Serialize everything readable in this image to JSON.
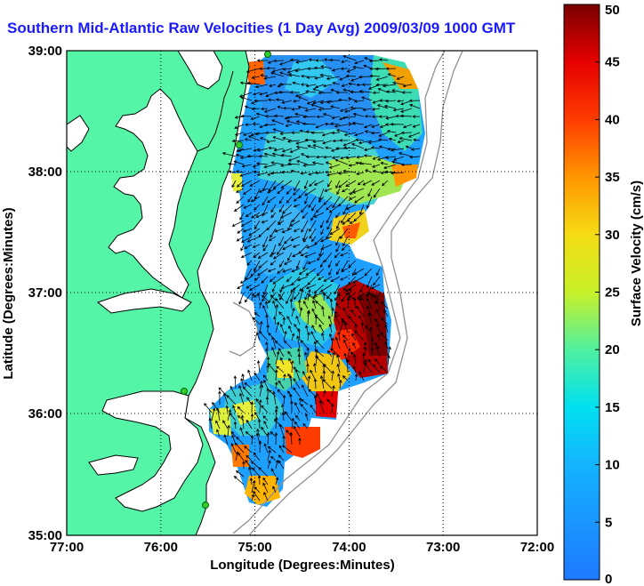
{
  "title": "Southern Mid-Atlantic Raw Velocities (1 Day Avg) 2009/03/09 1000 GMT",
  "axes": {
    "xlabel": "Longitude (Degrees:Minutes)",
    "ylabel": "Latitude (Degrees:Minutes)",
    "x_ticks": [
      "77:00",
      "76:00",
      "75:00",
      "74:00",
      "73:00",
      "72:00"
    ],
    "y_ticks": [
      "39:00",
      "38:00",
      "37:00",
      "36:00",
      "35:00"
    ],
    "grid": true
  },
  "colorbar": {
    "label": "Surface Velocity (cm/s)",
    "ticks": [
      "50",
      "45",
      "40",
      "35",
      "30",
      "25",
      "20",
      "15",
      "10",
      "5",
      "0"
    ],
    "range": [
      0,
      50
    ],
    "colors": [
      "#1e78ff",
      "#00d2ff",
      "#50f0a0",
      "#f0f014",
      "#ff8200",
      "#ff1400",
      "#7a0000"
    ]
  },
  "colors": {
    "land": "#55f5a8",
    "ocean": "#ffffff",
    "title": "#1a1aff",
    "station": "#33cc33",
    "arrow": "#000000"
  },
  "chart_data": {
    "type": "heatmap",
    "xlim": [
      -77,
      -72
    ],
    "ylim": [
      35,
      39
    ]
  }
}
